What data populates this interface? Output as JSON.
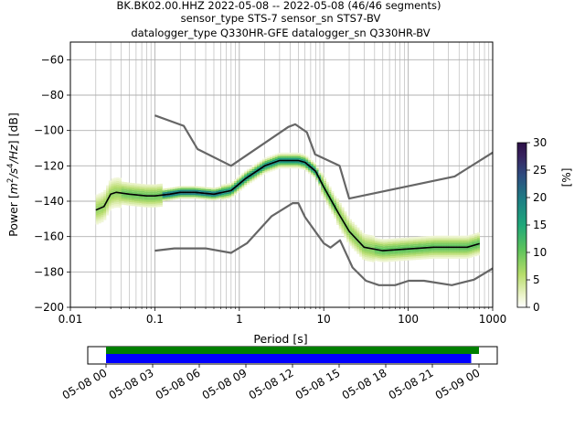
{
  "chart_data": {
    "type": "heatmap",
    "title_lines": [
      "BK.BK02.00.HHZ   2022-05-08 -- 2022-05-08  (46/46 segments)",
      "sensor_type STS-7 sensor_sn STS7-BV",
      "datalogger_type Q330HR-GFE datalogger_sn Q330HR-BV"
    ],
    "xlabel": "Period [s]",
    "ylabel_parts": [
      "Power [",
      "m",
      "2",
      "/s",
      "4",
      "/Hz",
      "] [dB]"
    ],
    "x_scale": "log",
    "xlim": [
      0.01,
      1000
    ],
    "ylim": [
      -200,
      -50
    ],
    "x_ticks": [
      0.01,
      0.1,
      1,
      10,
      100,
      1000
    ],
    "x_tick_labels": [
      "0.01",
      "0.1",
      "1",
      "10",
      "100",
      "1000"
    ],
    "y_ticks": [
      -200,
      -180,
      -160,
      -140,
      -120,
      -100,
      -80,
      -60
    ],
    "y_tick_labels": [
      "−200",
      "−180",
      "−160",
      "−140",
      "−120",
      "−100",
      "−80",
      "−60"
    ],
    "grid": true,
    "colorbar": {
      "label": "[%]",
      "range": [
        0,
        30
      ],
      "ticks": [
        0,
        5,
        10,
        15,
        20,
        25,
        30
      ],
      "tick_labels": [
        "0",
        "5",
        "10",
        "15",
        "20",
        "25",
        "30"
      ]
    },
    "mean_curve": {
      "period": [
        0.02,
        0.025,
        0.03,
        0.035,
        0.05,
        0.08,
        0.1,
        0.15,
        0.2,
        0.3,
        0.5,
        0.8,
        1.2,
        2,
        3,
        4,
        5,
        6,
        8,
        10,
        15,
        20,
        30,
        50,
        100,
        200,
        500,
        700
      ],
      "power": [
        -145,
        -143,
        -136,
        -135,
        -136,
        -137,
        -137,
        -136,
        -135,
        -135,
        -136,
        -134,
        -127,
        -120,
        -117,
        -117,
        -117,
        -118,
        -123,
        -132,
        -147,
        -157,
        -166,
        -168,
        -167,
        -166,
        -166,
        -164
      ]
    },
    "noise_model_high": {
      "period": [
        0.1,
        0.22,
        0.32,
        0.8,
        3.8,
        4.6,
        6.3,
        7.9,
        15.4,
        20,
        354.8,
        1000
      ],
      "power": [
        -91.5,
        -97.4,
        -110.5,
        -120,
        -98,
        -96.5,
        -101,
        -113.5,
        -120,
        -138.5,
        -126,
        -112.5
      ]
    },
    "noise_model_low": {
      "period": [
        0.1,
        0.17,
        0.4,
        0.8,
        1.24,
        2.4,
        4.3,
        5,
        6,
        10,
        12,
        15.6,
        21.9,
        31.6,
        45,
        70,
        101,
        154,
        328,
        600,
        1000
      ],
      "power": [
        -168,
        -166.7,
        -166.7,
        -169.2,
        -163.7,
        -148.6,
        -141.1,
        -141.1,
        -149,
        -163.8,
        -166.2,
        -162.1,
        -177.5,
        -185,
        -187.5,
        -187.5,
        -185,
        -185,
        -187.5,
        -184.4,
        -178
      ]
    },
    "coverage": {
      "tick_labels": [
        "05-08 00",
        "05-08 03",
        "05-08 06",
        "05-08 09",
        "05-08 12",
        "05-08 15",
        "05-08 18",
        "05-08 21",
        "05-09 00"
      ],
      "data_bar": {
        "start_hour": 0,
        "end_hour": 24,
        "color": "#008000"
      },
      "psd_bar": {
        "start_hour": 0,
        "end_hour": 23.5,
        "color": "#0000ff"
      }
    }
  }
}
